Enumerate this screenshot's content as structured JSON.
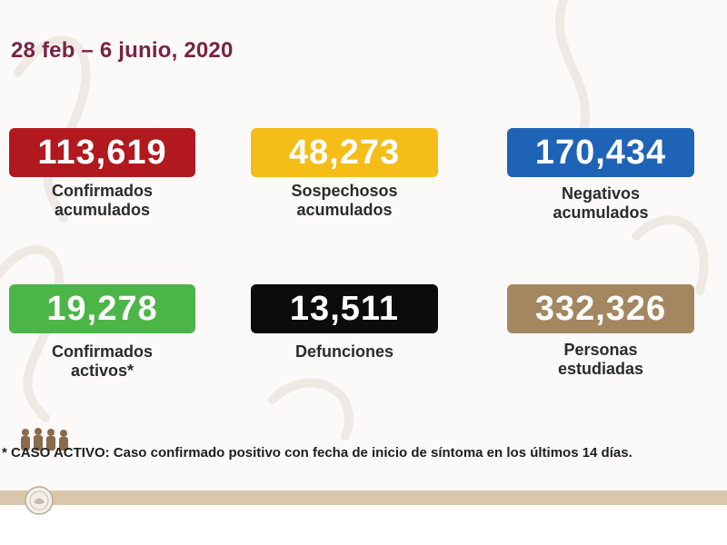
{
  "header": {
    "date_range": "28 feb – 6 junio, 2020"
  },
  "colors": {
    "title": "#7a2241",
    "confirmed": "#b1191f",
    "suspected": "#f4bd18",
    "negative": "#1f63b7",
    "active": "#4cb548",
    "deaths": "#0c0c0c",
    "studied": "#a38760"
  },
  "stats": [
    {
      "value": "113,619",
      "label": "Confirmados\nacumulados"
    },
    {
      "value": "48,273",
      "label": "Sospechosos\nacumulados"
    },
    {
      "value": "170,434",
      "label": "Negativos\nacumulados"
    },
    {
      "value": "19,278",
      "label": "Confirmados\nactivos*"
    },
    {
      "value": "13,511",
      "label": "Defunciones"
    },
    {
      "value": "332,326",
      "label": "Personas\nestudiadas"
    }
  ],
  "footnote": {
    "text": "* CASO ACTIVO: Caso confirmado positivo con fecha de inicio de síntoma en los últimos 14 días."
  },
  "icons": {
    "seal": "government-seal-icon",
    "figures": "historic-figures-icon"
  }
}
